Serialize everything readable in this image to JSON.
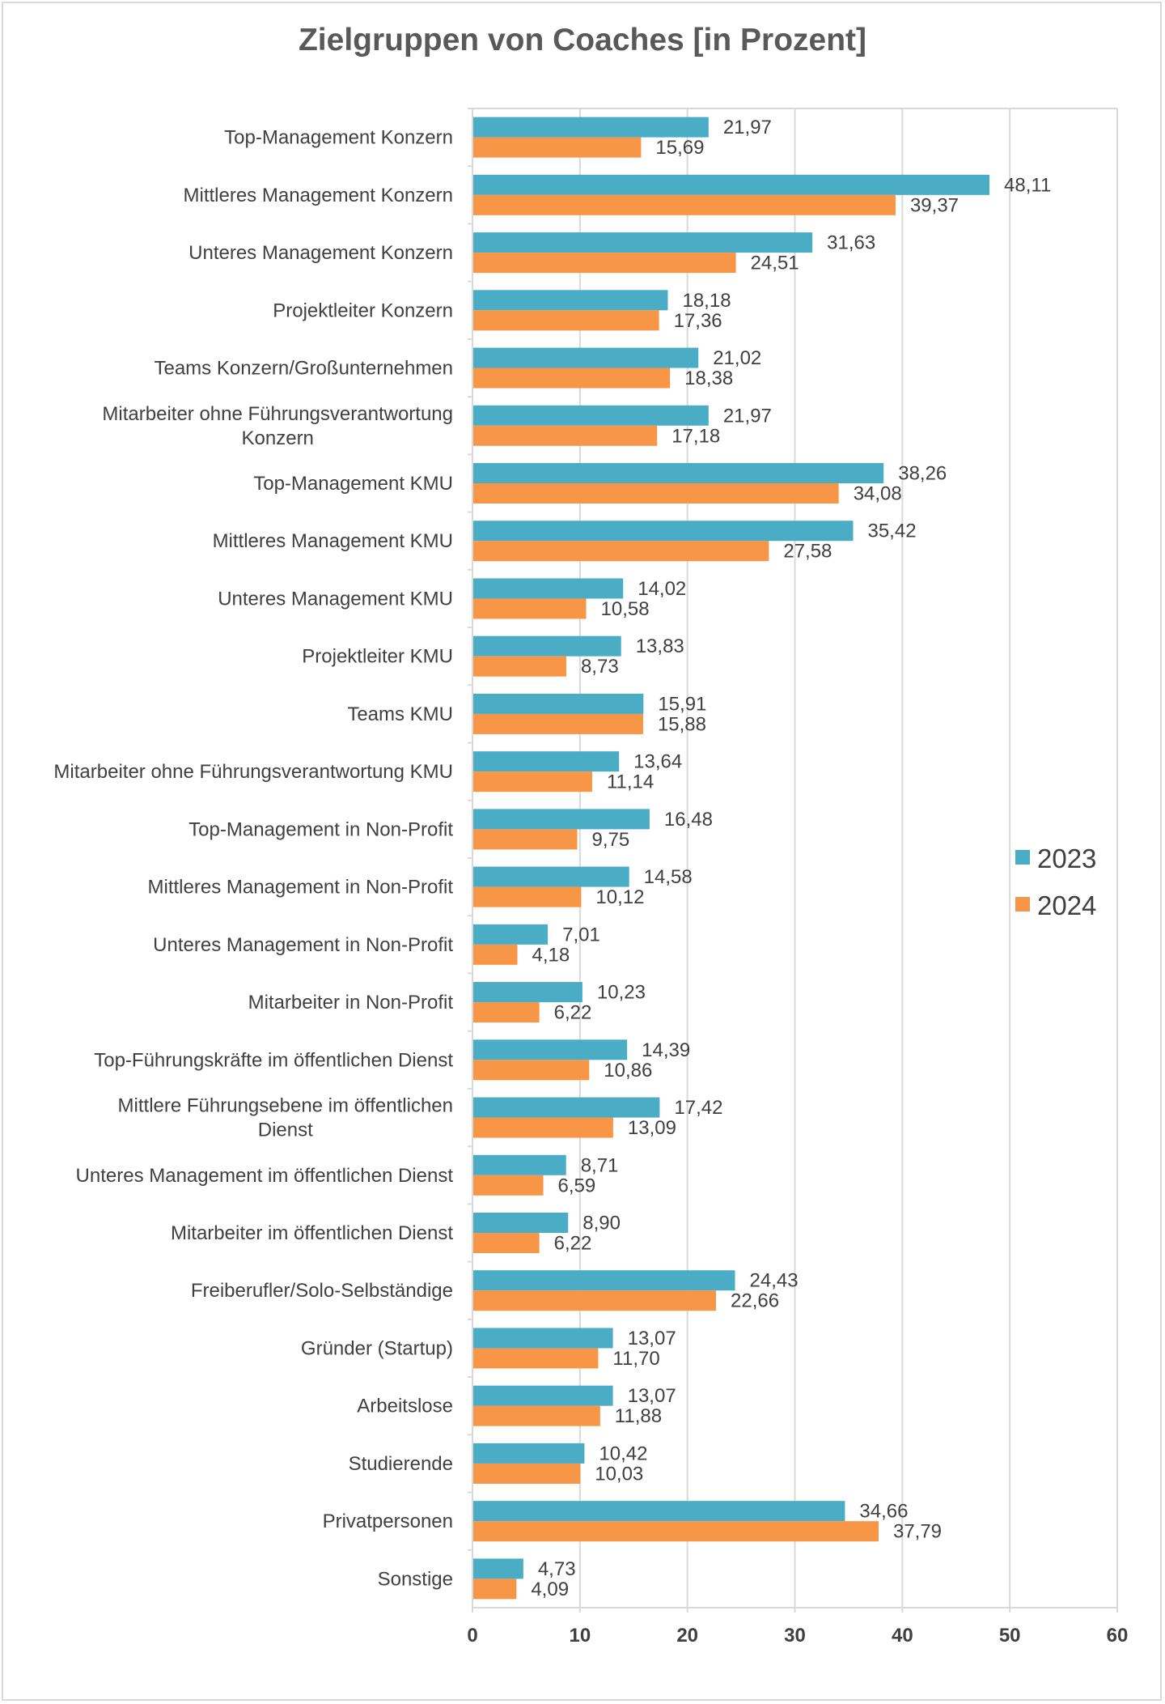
{
  "chart_data": {
    "type": "bar",
    "orientation": "horizontal",
    "title": "Zielgruppen von Coaches [in Prozent]",
    "xlabel": "",
    "ylabel": "",
    "xlim": [
      0,
      60
    ],
    "xticks": [
      0,
      10,
      20,
      30,
      40,
      50,
      60
    ],
    "grid": true,
    "legend_position": "right",
    "categories": [
      "Top-Management Konzern",
      "Mittleres Management Konzern",
      "Unteres Management Konzern",
      "Projektleiter Konzern",
      "Teams Konzern/Großunternehmen",
      "Mitarbeiter ohne Führungsverantwortung Konzern",
      "Top-Management KMU",
      "Mittleres Management KMU",
      "Unteres Management KMU",
      "Projektleiter KMU",
      "Teams KMU",
      "Mitarbeiter ohne Führungsverantwortung KMU",
      "Top-Management in Non-Profit",
      "Mittleres Management in Non-Profit",
      "Unteres Management in Non-Profit",
      "Mitarbeiter in Non-Profit",
      "Top-Führungskräfte im öffentlichen Dienst",
      "Mittlere Führungsebene im öffentlichen Dienst",
      "Unteres Management im öffentlichen Dienst",
      "Mitarbeiter im öffentlichen Dienst",
      "Freiberufler/Solo-Selbständige",
      "Gründer (Startup)",
      "Arbeitslose",
      "Studierende",
      "Privatpersonen",
      "Sonstige"
    ],
    "series": [
      {
        "name": "2023",
        "color": "#4bacc6",
        "values": [
          21.97,
          48.11,
          31.63,
          18.18,
          21.02,
          21.97,
          38.26,
          35.42,
          14.02,
          13.83,
          15.91,
          13.64,
          16.48,
          14.58,
          7.01,
          10.23,
          14.39,
          17.42,
          8.71,
          8.9,
          24.43,
          13.07,
          13.07,
          10.42,
          34.66,
          4.73
        ]
      },
      {
        "name": "2024",
        "color": "#f79646",
        "values": [
          15.69,
          39.37,
          24.51,
          17.36,
          18.38,
          17.18,
          34.08,
          27.58,
          10.58,
          8.73,
          15.88,
          11.14,
          9.75,
          10.12,
          4.18,
          6.22,
          10.86,
          13.09,
          6.59,
          6.22,
          22.66,
          11.7,
          11.88,
          10.03,
          37.79,
          4.09
        ]
      }
    ]
  }
}
